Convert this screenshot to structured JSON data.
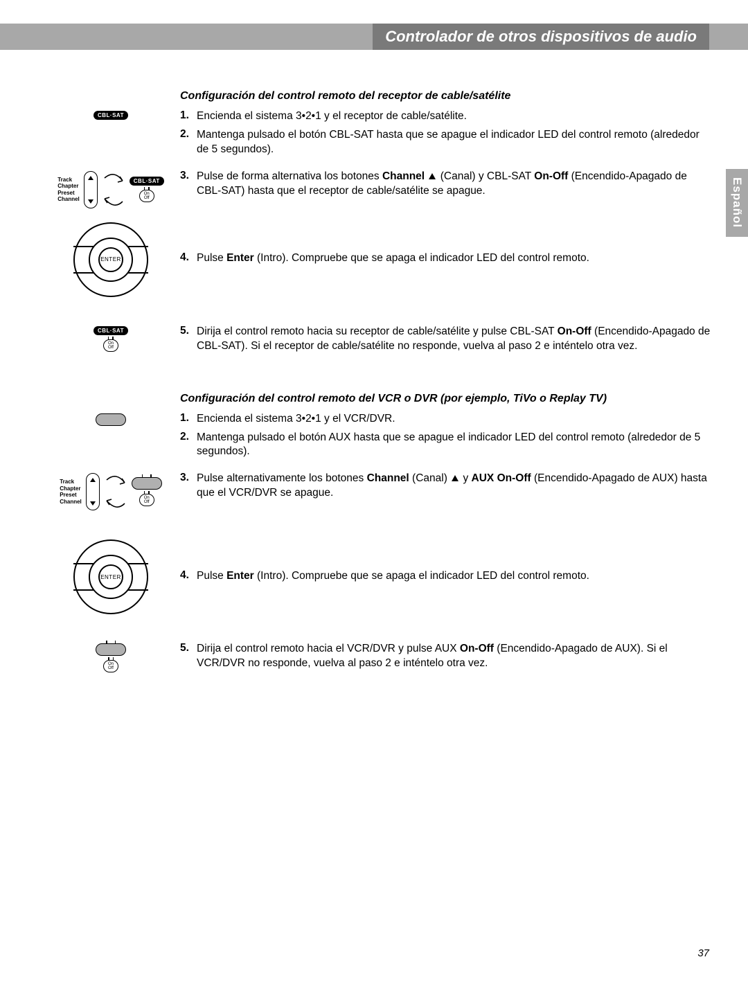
{
  "colors": {
    "header_bar": "#a8a8a8",
    "header_title_bg": "#7a7a7a",
    "text": "#000000",
    "page_bg": "#ffffff",
    "lang_tab": "#a8a8a8",
    "aux_fill": "#b0b0b0"
  },
  "header": {
    "title": "Controlador de otros dispositivos de audio"
  },
  "lang_tab": "Español",
  "page_number": "37",
  "icons": {
    "cblsat_label": "CBL·SAT",
    "enter_label": "ENTER",
    "on": "On",
    "off": "Off",
    "track_labels": [
      "Track",
      "Chapter",
      "Preset",
      "Channel"
    ]
  },
  "section1": {
    "title": "Configuración del control remoto del receptor de cable/satélite",
    "steps": [
      {
        "n": "1.",
        "html": "Encienda el sistema 3•2•1 y el receptor de cable/satélite."
      },
      {
        "n": "2.",
        "html": "Mantenga pulsado el botón CBL-SAT hasta que se apague el indicador LED del control remoto (alrededor de 5 segundos)."
      },
      {
        "n": "3.",
        "html": "Pulse de forma alternativa los botones <b>Channel</b> <span class=\"tri-up-inline\"></span> (Canal) y CBL-SAT <b>On-Off</b> (Encendido-Apagado de CBL-SAT) hasta que el receptor de cable/satélite se apague."
      },
      {
        "n": "4.",
        "html": "Pulse <b>Enter</b> (Intro). Compruebe que se apaga el indicador LED del control remoto."
      },
      {
        "n": "5.",
        "html": "Dirija el control remoto hacia su receptor de cable/satélite y pulse CBL-SAT <b>On-Off</b> (Encendido-Apagado de CBL-SAT). Si el receptor de cable/satélite no responde, vuelva al paso 2 e inténtelo otra vez."
      }
    ]
  },
  "section2": {
    "title": "Configuración del control remoto del VCR o DVR (por ejemplo, TiVo o Replay TV)",
    "steps": [
      {
        "n": "1.",
        "html": "Encienda el sistema 3•2•1 y el VCR/DVR."
      },
      {
        "n": "2.",
        "html": "Mantenga pulsado el botón AUX hasta que se apague el indicador LED del control remoto (alrededor de 5 segundos)."
      },
      {
        "n": "3.",
        "html": "Pulse alternativamente los botones <b>Channel</b> (Canal) <span class=\"tri-up-inline\"></span> y <b>AUX On-Off</b> (Encendido-Apagado de AUX) hasta que el VCR/DVR se apague."
      },
      {
        "n": "4.",
        "html": "Pulse <b>Enter</b> (Intro). Compruebe que se apaga el indicador LED del control remoto."
      },
      {
        "n": "5.",
        "html": "Dirija el control remoto hacia el VCR/DVR y pulse AUX <b>On-Off</b> (Encendido-Apagado de AUX). Si el VCR/DVR no responde, vuelva al paso 2 e inténtelo otra vez."
      }
    ]
  }
}
